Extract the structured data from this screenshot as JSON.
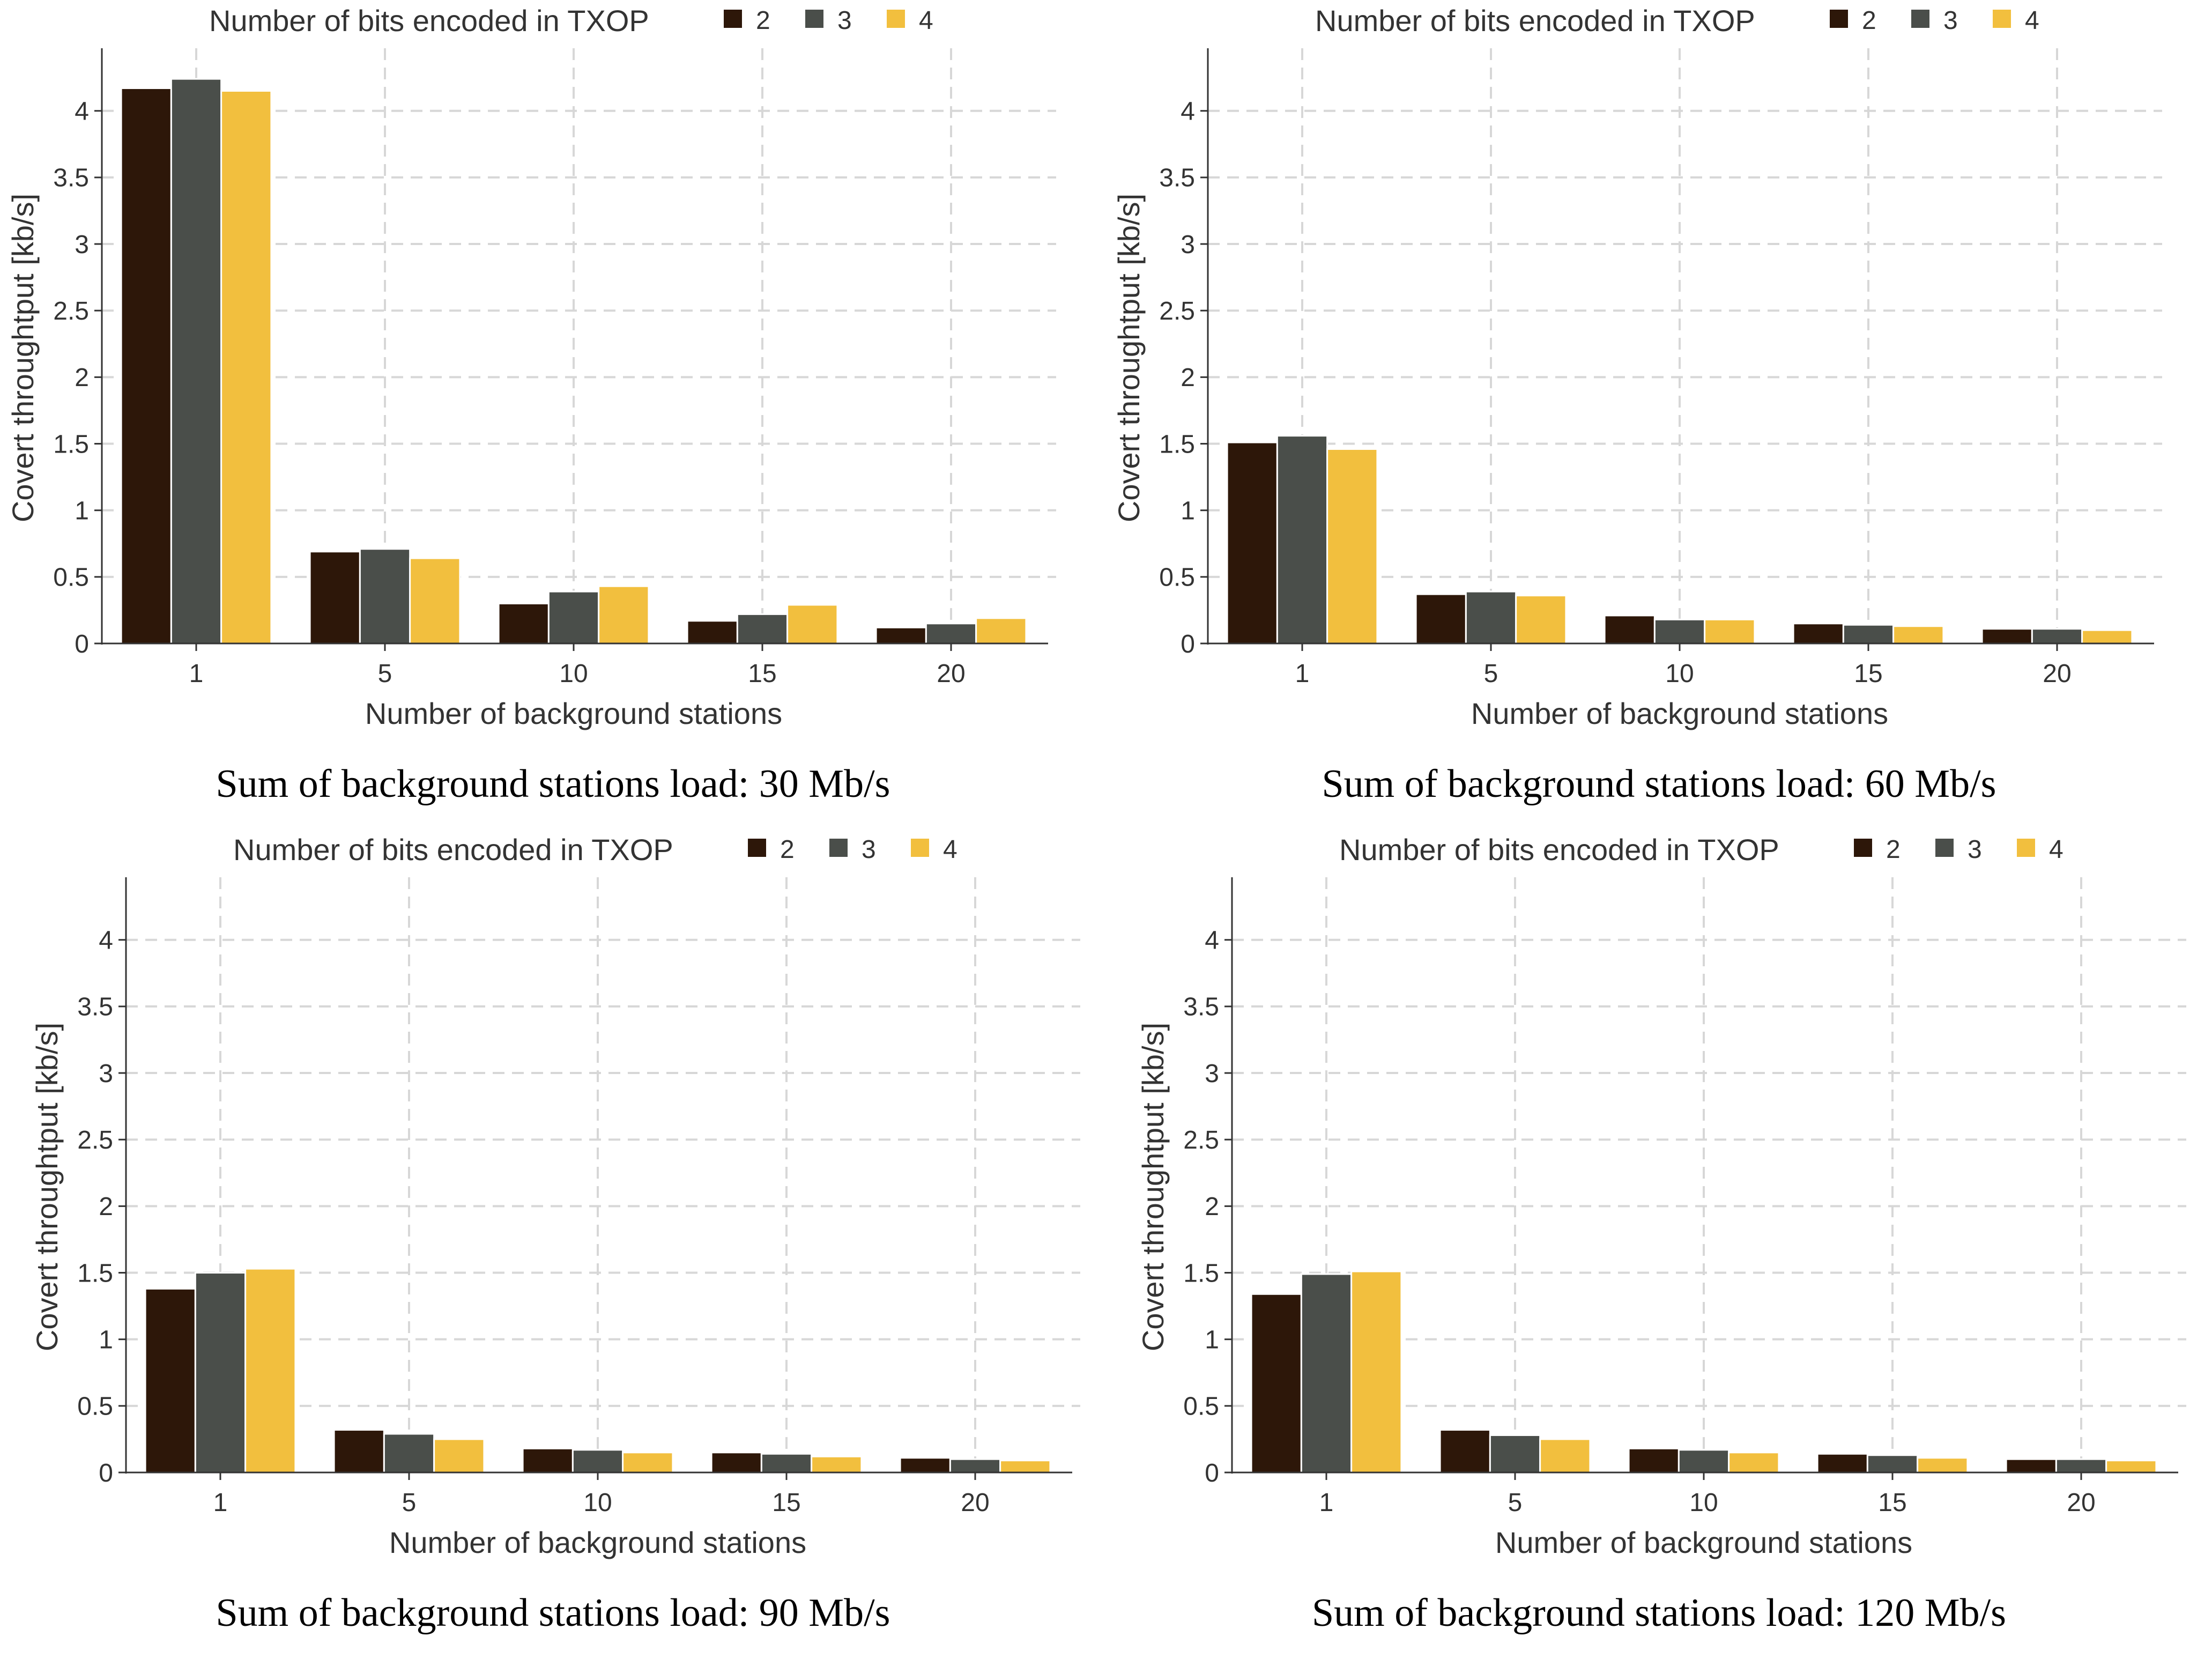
{
  "colors": {
    "series_2": "#2d1709",
    "series_3": "#4a4e4a",
    "series_4": "#f2bf3e",
    "grid": "#d7d7d7",
    "axis": "#333333",
    "text": "#333333"
  },
  "chart_data": [
    {
      "type": "bar",
      "title": "",
      "caption": "Sum of background stations load: 30 Mb/s",
      "legend_title": "Number of bits encoded in TXOP",
      "legend_position": "top",
      "xlabel": "Number of background stations",
      "ylabel": "Covert throughtput [kb/s]",
      "categories": [
        "1",
        "5",
        "10",
        "15",
        "20"
      ],
      "yticks": [
        0,
        0.5,
        1,
        1.5,
        2,
        2.5,
        3,
        3.5,
        4
      ],
      "ytick_labels": [
        "0",
        "0.5",
        "1",
        "1.5",
        "2",
        "2.5",
        "3",
        "3.5",
        "4"
      ],
      "ylim": [
        0,
        4.45
      ],
      "grid": true,
      "series": [
        {
          "name": "2",
          "values": [
            4.17,
            0.69,
            0.3,
            0.17,
            0.12
          ]
        },
        {
          "name": "3",
          "values": [
            4.24,
            0.71,
            0.39,
            0.22,
            0.15
          ]
        },
        {
          "name": "4",
          "values": [
            4.15,
            0.64,
            0.43,
            0.29,
            0.19
          ]
        }
      ]
    },
    {
      "type": "bar",
      "title": "",
      "caption": "Sum of background stations load: 60 Mb/s",
      "legend_title": "Number of bits encoded in TXOP",
      "legend_position": "top",
      "xlabel": "Number of background stations",
      "ylabel": "Covert throughtput [kb/s]",
      "categories": [
        "1",
        "5",
        "10",
        "15",
        "20"
      ],
      "yticks": [
        0,
        0.5,
        1,
        1.5,
        2,
        2.5,
        3,
        3.5,
        4
      ],
      "ytick_labels": [
        "0",
        "0.5",
        "1",
        "1.5",
        "2",
        "2.5",
        "3",
        "3.5",
        "4"
      ],
      "ylim": [
        0,
        4.45
      ],
      "grid": true,
      "series": [
        {
          "name": "2",
          "values": [
            1.51,
            0.37,
            0.21,
            0.15,
            0.11
          ]
        },
        {
          "name": "3",
          "values": [
            1.56,
            0.39,
            0.18,
            0.14,
            0.11
          ]
        },
        {
          "name": "4",
          "values": [
            1.46,
            0.36,
            0.18,
            0.13,
            0.1
          ]
        }
      ]
    },
    {
      "type": "bar",
      "title": "",
      "caption": "Sum of background stations load: 90 Mb/s",
      "legend_title": "Number of bits encoded in TXOP",
      "legend_position": "top",
      "xlabel": "Number of background stations",
      "ylabel": "Covert throughtput [kb/s]",
      "categories": [
        "1",
        "5",
        "10",
        "15",
        "20"
      ],
      "yticks": [
        0,
        0.5,
        1,
        1.5,
        2,
        2.5,
        3,
        3.5,
        4
      ],
      "ytick_labels": [
        "0",
        "0.5",
        "1",
        "1.5",
        "2",
        "2.5",
        "3",
        "3.5",
        "4"
      ],
      "ylim": [
        0,
        4.45
      ],
      "grid": true,
      "series": [
        {
          "name": "2",
          "values": [
            1.38,
            0.32,
            0.18,
            0.15,
            0.11
          ]
        },
        {
          "name": "3",
          "values": [
            1.5,
            0.29,
            0.17,
            0.14,
            0.1
          ]
        },
        {
          "name": "4",
          "values": [
            1.53,
            0.25,
            0.15,
            0.12,
            0.09
          ]
        }
      ]
    },
    {
      "type": "bar",
      "title": "",
      "caption": "Sum of background stations load: 120 Mb/s",
      "legend_title": "Number of bits encoded in TXOP",
      "legend_position": "top",
      "xlabel": "Number of background stations",
      "ylabel": "Covert throughtput [kb/s]",
      "categories": [
        "1",
        "5",
        "10",
        "15",
        "20"
      ],
      "yticks": [
        0,
        0.5,
        1,
        1.5,
        2,
        2.5,
        3,
        3.5,
        4
      ],
      "ytick_labels": [
        "0",
        "0.5",
        "1",
        "1.5",
        "2",
        "2.5",
        "3",
        "3.5",
        "4"
      ],
      "ylim": [
        0,
        4.45
      ],
      "grid": true,
      "series": [
        {
          "name": "2",
          "values": [
            1.34,
            0.32,
            0.18,
            0.14,
            0.1
          ]
        },
        {
          "name": "3",
          "values": [
            1.49,
            0.28,
            0.17,
            0.13,
            0.1
          ]
        },
        {
          "name": "4",
          "values": [
            1.51,
            0.25,
            0.15,
            0.11,
            0.09
          ]
        }
      ]
    }
  ]
}
